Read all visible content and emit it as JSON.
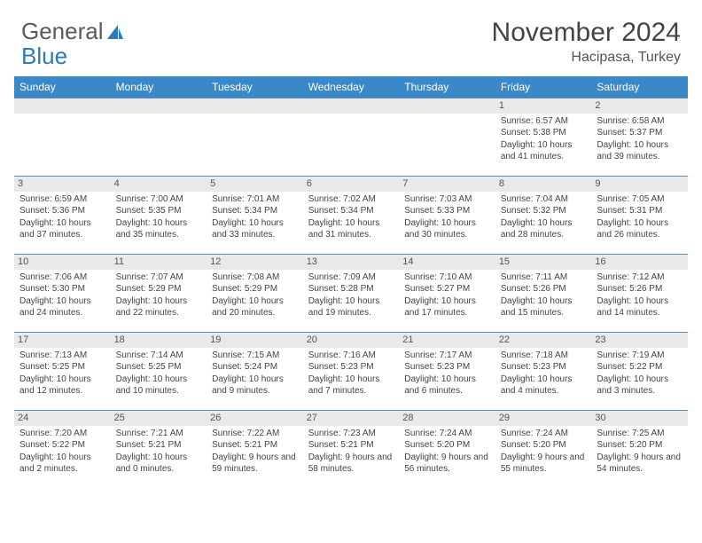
{
  "logo": {
    "part1": "General",
    "part2": "Blue"
  },
  "title": "November 2024",
  "location": "Hacipasa, Turkey",
  "columns": [
    "Sunday",
    "Monday",
    "Tuesday",
    "Wednesday",
    "Thursday",
    "Friday",
    "Saturday"
  ],
  "header_bg": "#3b88c8",
  "daynum_bg": "#e9e9e9",
  "weeks": [
    [
      {
        "day": "",
        "sunrise": "",
        "sunset": "",
        "daylight": ""
      },
      {
        "day": "",
        "sunrise": "",
        "sunset": "",
        "daylight": ""
      },
      {
        "day": "",
        "sunrise": "",
        "sunset": "",
        "daylight": ""
      },
      {
        "day": "",
        "sunrise": "",
        "sunset": "",
        "daylight": ""
      },
      {
        "day": "",
        "sunrise": "",
        "sunset": "",
        "daylight": ""
      },
      {
        "day": "1",
        "sunrise": "Sunrise: 6:57 AM",
        "sunset": "Sunset: 5:38 PM",
        "daylight": "Daylight: 10 hours and 41 minutes."
      },
      {
        "day": "2",
        "sunrise": "Sunrise: 6:58 AM",
        "sunset": "Sunset: 5:37 PM",
        "daylight": "Daylight: 10 hours and 39 minutes."
      }
    ],
    [
      {
        "day": "3",
        "sunrise": "Sunrise: 6:59 AM",
        "sunset": "Sunset: 5:36 PM",
        "daylight": "Daylight: 10 hours and 37 minutes."
      },
      {
        "day": "4",
        "sunrise": "Sunrise: 7:00 AM",
        "sunset": "Sunset: 5:35 PM",
        "daylight": "Daylight: 10 hours and 35 minutes."
      },
      {
        "day": "5",
        "sunrise": "Sunrise: 7:01 AM",
        "sunset": "Sunset: 5:34 PM",
        "daylight": "Daylight: 10 hours and 33 minutes."
      },
      {
        "day": "6",
        "sunrise": "Sunrise: 7:02 AM",
        "sunset": "Sunset: 5:34 PM",
        "daylight": "Daylight: 10 hours and 31 minutes."
      },
      {
        "day": "7",
        "sunrise": "Sunrise: 7:03 AM",
        "sunset": "Sunset: 5:33 PM",
        "daylight": "Daylight: 10 hours and 30 minutes."
      },
      {
        "day": "8",
        "sunrise": "Sunrise: 7:04 AM",
        "sunset": "Sunset: 5:32 PM",
        "daylight": "Daylight: 10 hours and 28 minutes."
      },
      {
        "day": "9",
        "sunrise": "Sunrise: 7:05 AM",
        "sunset": "Sunset: 5:31 PM",
        "daylight": "Daylight: 10 hours and 26 minutes."
      }
    ],
    [
      {
        "day": "10",
        "sunrise": "Sunrise: 7:06 AM",
        "sunset": "Sunset: 5:30 PM",
        "daylight": "Daylight: 10 hours and 24 minutes."
      },
      {
        "day": "11",
        "sunrise": "Sunrise: 7:07 AM",
        "sunset": "Sunset: 5:29 PM",
        "daylight": "Daylight: 10 hours and 22 minutes."
      },
      {
        "day": "12",
        "sunrise": "Sunrise: 7:08 AM",
        "sunset": "Sunset: 5:29 PM",
        "daylight": "Daylight: 10 hours and 20 minutes."
      },
      {
        "day": "13",
        "sunrise": "Sunrise: 7:09 AM",
        "sunset": "Sunset: 5:28 PM",
        "daylight": "Daylight: 10 hours and 19 minutes."
      },
      {
        "day": "14",
        "sunrise": "Sunrise: 7:10 AM",
        "sunset": "Sunset: 5:27 PM",
        "daylight": "Daylight: 10 hours and 17 minutes."
      },
      {
        "day": "15",
        "sunrise": "Sunrise: 7:11 AM",
        "sunset": "Sunset: 5:26 PM",
        "daylight": "Daylight: 10 hours and 15 minutes."
      },
      {
        "day": "16",
        "sunrise": "Sunrise: 7:12 AM",
        "sunset": "Sunset: 5:26 PM",
        "daylight": "Daylight: 10 hours and 14 minutes."
      }
    ],
    [
      {
        "day": "17",
        "sunrise": "Sunrise: 7:13 AM",
        "sunset": "Sunset: 5:25 PM",
        "daylight": "Daylight: 10 hours and 12 minutes."
      },
      {
        "day": "18",
        "sunrise": "Sunrise: 7:14 AM",
        "sunset": "Sunset: 5:25 PM",
        "daylight": "Daylight: 10 hours and 10 minutes."
      },
      {
        "day": "19",
        "sunrise": "Sunrise: 7:15 AM",
        "sunset": "Sunset: 5:24 PM",
        "daylight": "Daylight: 10 hours and 9 minutes."
      },
      {
        "day": "20",
        "sunrise": "Sunrise: 7:16 AM",
        "sunset": "Sunset: 5:23 PM",
        "daylight": "Daylight: 10 hours and 7 minutes."
      },
      {
        "day": "21",
        "sunrise": "Sunrise: 7:17 AM",
        "sunset": "Sunset: 5:23 PM",
        "daylight": "Daylight: 10 hours and 6 minutes."
      },
      {
        "day": "22",
        "sunrise": "Sunrise: 7:18 AM",
        "sunset": "Sunset: 5:23 PM",
        "daylight": "Daylight: 10 hours and 4 minutes."
      },
      {
        "day": "23",
        "sunrise": "Sunrise: 7:19 AM",
        "sunset": "Sunset: 5:22 PM",
        "daylight": "Daylight: 10 hours and 3 minutes."
      }
    ],
    [
      {
        "day": "24",
        "sunrise": "Sunrise: 7:20 AM",
        "sunset": "Sunset: 5:22 PM",
        "daylight": "Daylight: 10 hours and 2 minutes."
      },
      {
        "day": "25",
        "sunrise": "Sunrise: 7:21 AM",
        "sunset": "Sunset: 5:21 PM",
        "daylight": "Daylight: 10 hours and 0 minutes."
      },
      {
        "day": "26",
        "sunrise": "Sunrise: 7:22 AM",
        "sunset": "Sunset: 5:21 PM",
        "daylight": "Daylight: 9 hours and 59 minutes."
      },
      {
        "day": "27",
        "sunrise": "Sunrise: 7:23 AM",
        "sunset": "Sunset: 5:21 PM",
        "daylight": "Daylight: 9 hours and 58 minutes."
      },
      {
        "day": "28",
        "sunrise": "Sunrise: 7:24 AM",
        "sunset": "Sunset: 5:20 PM",
        "daylight": "Daylight: 9 hours and 56 minutes."
      },
      {
        "day": "29",
        "sunrise": "Sunrise: 7:24 AM",
        "sunset": "Sunset: 5:20 PM",
        "daylight": "Daylight: 9 hours and 55 minutes."
      },
      {
        "day": "30",
        "sunrise": "Sunrise: 7:25 AM",
        "sunset": "Sunset: 5:20 PM",
        "daylight": "Daylight: 9 hours and 54 minutes."
      }
    ]
  ]
}
